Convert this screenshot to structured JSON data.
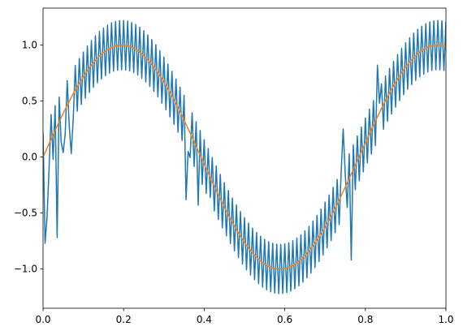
{
  "chart_data": {
    "type": "line",
    "title": "",
    "xlabel": "",
    "ylabel": "",
    "xlim": [
      0,
      1
    ],
    "ylim": [
      -1.35,
      1.33
    ],
    "grid": false,
    "x_ticks": [
      {
        "value": 0.0,
        "label": "0.0"
      },
      {
        "value": 0.2,
        "label": "0.2"
      },
      {
        "value": 0.4,
        "label": "0.4"
      },
      {
        "value": 0.6,
        "label": "0.6"
      },
      {
        "value": 0.8,
        "label": "0.8"
      },
      {
        "value": 1.0,
        "label": "1.0"
      }
    ],
    "y_ticks": [
      {
        "value": -1.0,
        "label": "−1.0"
      },
      {
        "value": -0.5,
        "label": "−0.5"
      },
      {
        "value": 0.0,
        "label": "0.0"
      },
      {
        "value": 0.5,
        "label": "0.5"
      },
      {
        "value": 1.0,
        "label": "1.0"
      }
    ],
    "series": [
      {
        "color": "#1f77b4",
        "sampling": {
          "x_start": 0,
          "x_end": 1,
          "count": 201
        },
        "components": {
          "base": {
            "amplitude": 1.0,
            "period": 0.784
          },
          "fast": {
            "amplitude": 0.22,
            "cycles": 100
          }
        },
        "glitches": [
          {
            "x": 0.005,
            "y": -0.77
          },
          {
            "x": 0.01,
            "y": -0.53
          },
          {
            "x": 0.035,
            "y": -0.72
          },
          {
            "x": 0.05,
            "y": 0.04
          },
          {
            "x": 0.07,
            "y": 0.03
          },
          {
            "x": 0.355,
            "y": -0.38
          },
          {
            "x": 0.36,
            "y": 0.05
          },
          {
            "x": 0.385,
            "y": -0.43
          },
          {
            "x": 0.415,
            "y": -0.36
          },
          {
            "x": 0.745,
            "y": 0.25
          },
          {
            "x": 0.75,
            "y": -0.15
          },
          {
            "x": 0.765,
            "y": -0.92
          },
          {
            "x": 0.83,
            "y": 0.82
          },
          {
            "x": 0.835,
            "y": 0.48
          }
        ]
      },
      {
        "color": "#ff7f0e",
        "sampling": {
          "x_start": 0,
          "x_end": 1,
          "count": 201
        },
        "components": {
          "base": {
            "amplitude": 1.0,
            "period": 0.784
          }
        }
      }
    ]
  }
}
